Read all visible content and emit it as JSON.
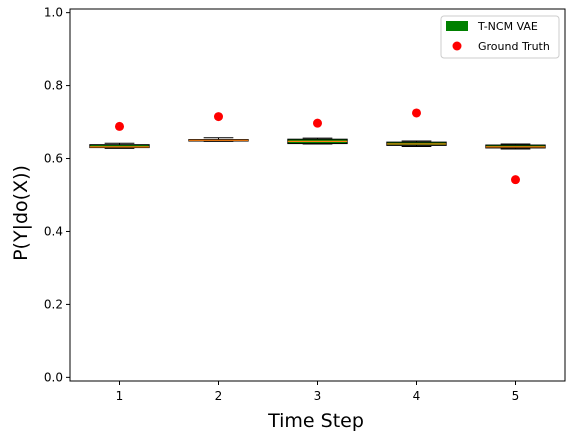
{
  "chart_data": {
    "type": "box",
    "xlabel": "Time Step",
    "ylabel": "P(Y|do(X))",
    "xlim": [
      0.5,
      5.5
    ],
    "ylim": [
      -0.01,
      1.01
    ],
    "categories": [
      "1",
      "2",
      "3",
      "4",
      "5"
    ],
    "yticks": [
      0.0,
      0.2,
      0.4,
      0.6,
      0.8,
      1.0
    ],
    "ytick_labels": [
      "0.0",
      "0.2",
      "0.4",
      "0.6",
      "0.8",
      "1.0"
    ],
    "grid": false,
    "legend_position": "top-right",
    "series": [
      {
        "name": "T-NCM VAE",
        "kind": "box",
        "color": "#008000",
        "median_color": "#ff7f0e",
        "boxes": [
          {
            "x": 1,
            "whisker_low": 0.628,
            "q1": 0.63,
            "median": 0.632,
            "q3": 0.638,
            "whisker_high": 0.642
          },
          {
            "x": 2,
            "whisker_low": 0.647,
            "q1": 0.648,
            "median": 0.65,
            "q3": 0.652,
            "whisker_high": 0.657
          },
          {
            "x": 3,
            "whisker_low": 0.64,
            "q1": 0.641,
            "median": 0.647,
            "q3": 0.653,
            "whisker_high": 0.656
          },
          {
            "x": 4,
            "whisker_low": 0.633,
            "q1": 0.636,
            "median": 0.64,
            "q3": 0.645,
            "whisker_high": 0.648
          },
          {
            "x": 5,
            "whisker_low": 0.626,
            "q1": 0.629,
            "median": 0.632,
            "q3": 0.637,
            "whisker_high": 0.64
          }
        ]
      },
      {
        "name": "Ground Truth",
        "kind": "point",
        "color": "#ff0000",
        "x": [
          1,
          2,
          3,
          4,
          5
        ],
        "values": [
          0.688,
          0.715,
          0.697,
          0.725,
          0.542
        ]
      }
    ]
  }
}
